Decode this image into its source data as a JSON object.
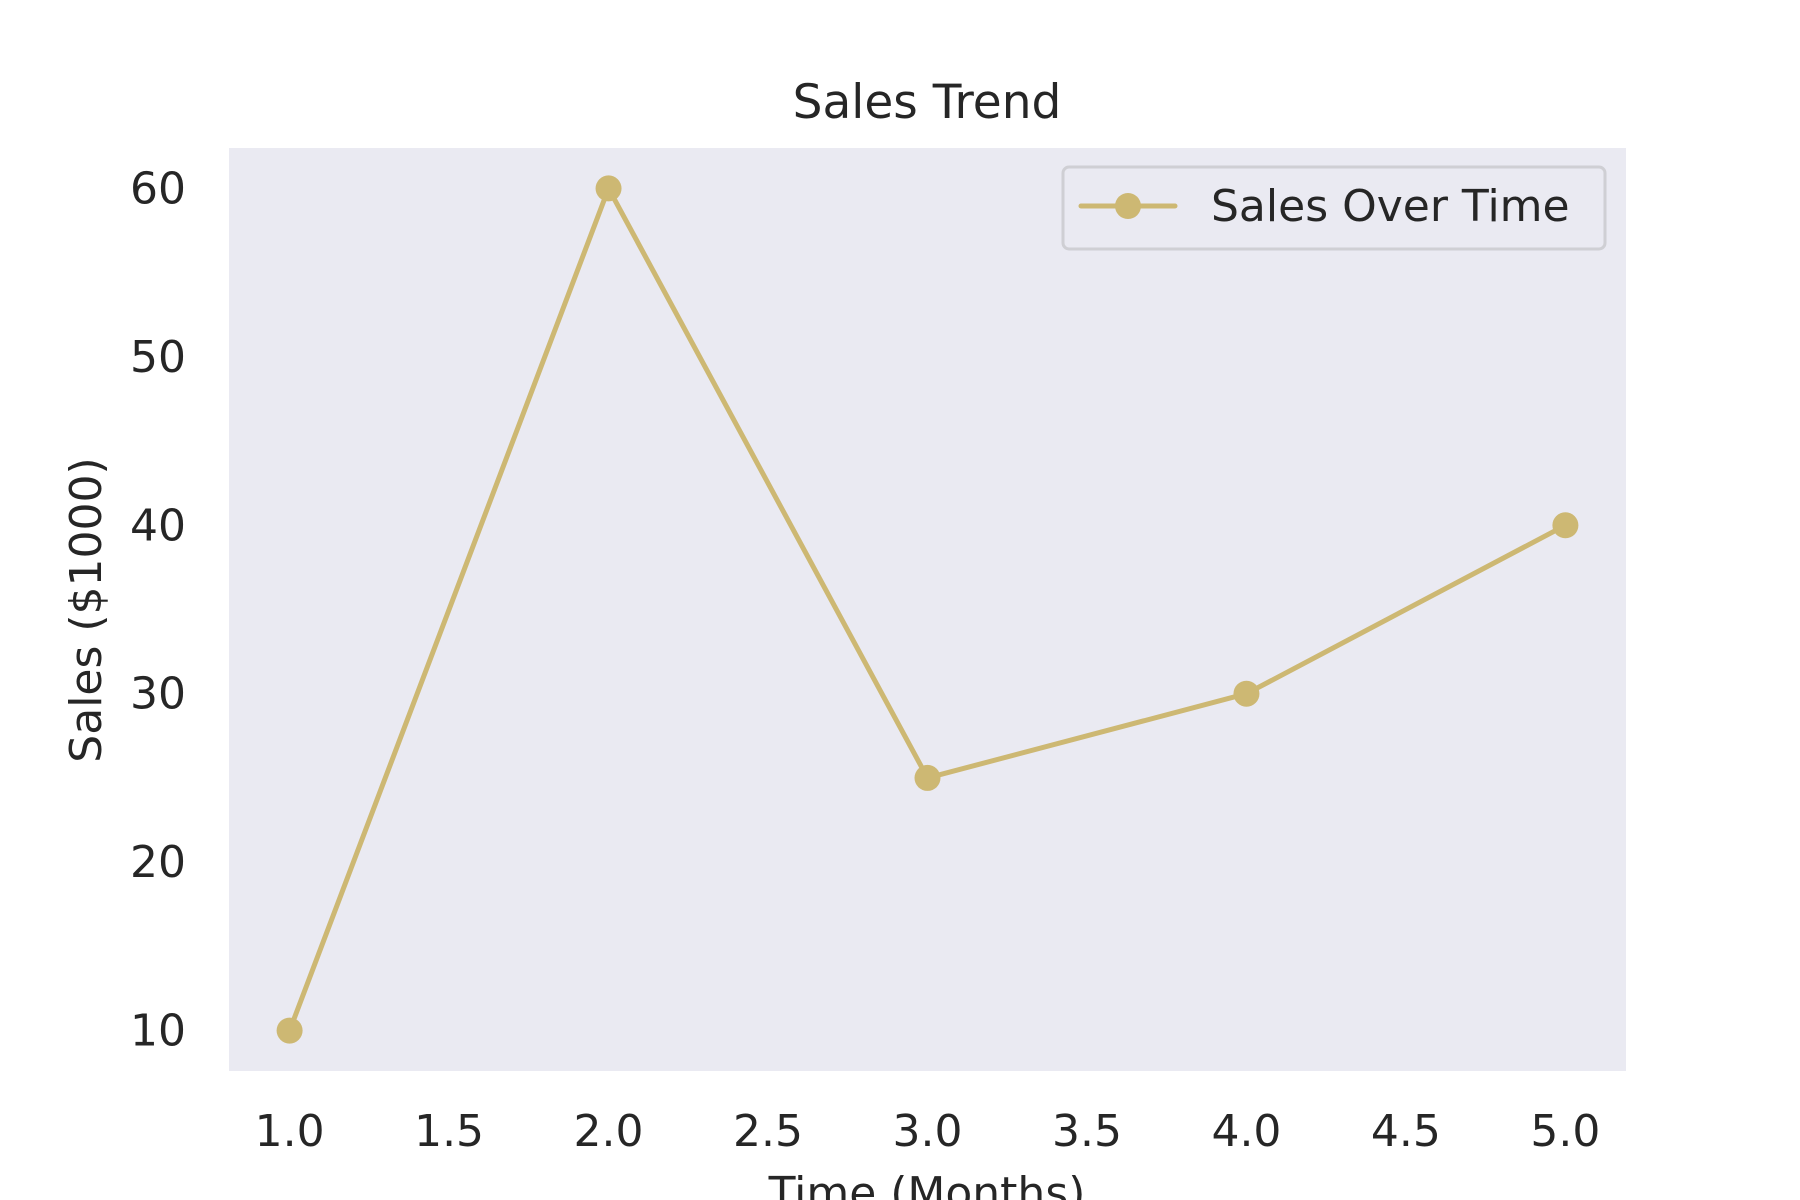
{
  "chart_data": {
    "type": "line",
    "title": "Sales Trend",
    "xlabel": "Time (Months)",
    "ylabel": "Sales ($1000)",
    "x": [
      1,
      2,
      3,
      4,
      5
    ],
    "series": [
      {
        "name": "Sales Over Time",
        "values": [
          10,
          60,
          25,
          30,
          40
        ],
        "color": "#cdb873",
        "marker": "circle"
      }
    ],
    "xticks": [
      "1.0",
      "1.5",
      "2.0",
      "2.5",
      "3.0",
      "3.5",
      "4.0",
      "4.5",
      "5.0"
    ],
    "yticks": [
      "10",
      "20",
      "30",
      "40",
      "50",
      "60"
    ],
    "xlim": [
      0.81,
      5.19
    ],
    "ylim": [
      7.6,
      62.4
    ],
    "grid": false,
    "legend_position": "top-right",
    "plot_background": "#eaeaf2"
  }
}
